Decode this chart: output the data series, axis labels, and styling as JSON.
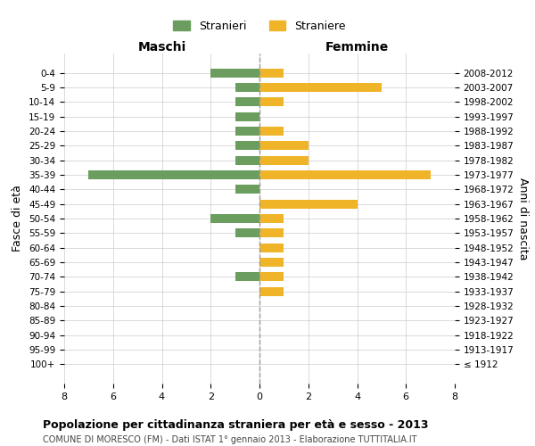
{
  "age_groups": [
    "100+",
    "95-99",
    "90-94",
    "85-89",
    "80-84",
    "75-79",
    "70-74",
    "65-69",
    "60-64",
    "55-59",
    "50-54",
    "45-49",
    "40-44",
    "35-39",
    "30-34",
    "25-29",
    "20-24",
    "15-19",
    "10-14",
    "5-9",
    "0-4"
  ],
  "birth_years": [
    "≤ 1912",
    "1913-1917",
    "1918-1922",
    "1923-1927",
    "1928-1932",
    "1933-1937",
    "1938-1942",
    "1943-1947",
    "1948-1952",
    "1953-1957",
    "1958-1962",
    "1963-1967",
    "1968-1972",
    "1973-1977",
    "1978-1982",
    "1983-1987",
    "1988-1992",
    "1993-1997",
    "1998-2002",
    "2003-2007",
    "2008-2012"
  ],
  "maschi": [
    0,
    0,
    0,
    0,
    0,
    0,
    1,
    0,
    0,
    1,
    2,
    0,
    1,
    7,
    1,
    1,
    1,
    1,
    1,
    1,
    2
  ],
  "femmine": [
    0,
    0,
    0,
    0,
    0,
    1,
    1,
    1,
    1,
    1,
    1,
    4,
    0,
    7,
    2,
    2,
    1,
    0,
    1,
    5,
    1
  ],
  "color_maschi": "#6b9e5e",
  "color_femmine": "#f0b429",
  "title": "Popolazione per cittadinanza straniera per età e sesso - 2013",
  "subtitle": "COMUNE DI MORESCO (FM) - Dati ISTAT 1° gennaio 2013 - Elaborazione TUTTITALIA.IT",
  "xlabel_left": "Maschi",
  "xlabel_right": "Femmine",
  "ylabel_left": "Fasce di età",
  "ylabel_right": "Anni di nascita",
  "legend_maschi": "Stranieri",
  "legend_femmine": "Straniere",
  "xlim": 8,
  "background_color": "#ffffff",
  "grid_color": "#cccccc"
}
